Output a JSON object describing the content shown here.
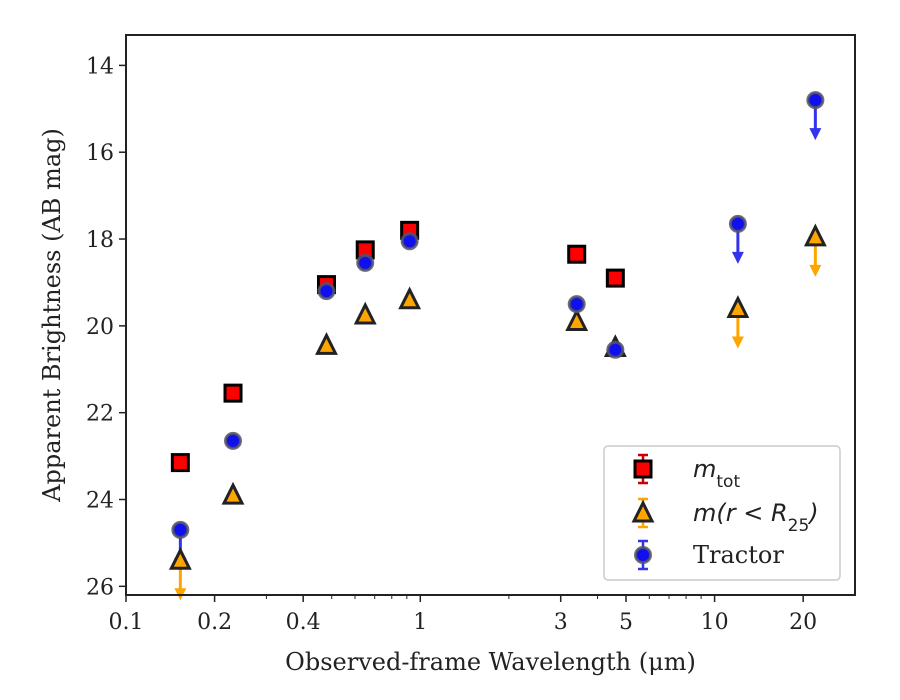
{
  "chart_data": {
    "type": "scatter",
    "xlabel": "Observed-frame Wavelength (μm)",
    "ylabel": "Apparent Brightness (AB mag)",
    "xscale": "log",
    "xlim": [
      0.1,
      30
    ],
    "ylim": [
      26.2,
      13.3
    ],
    "y_inverted": true,
    "x_ticks": [
      {
        "value": 0.1,
        "label": "0.1"
      },
      {
        "value": 0.2,
        "label": "0.2"
      },
      {
        "value": 0.4,
        "label": "0.4"
      },
      {
        "value": 1,
        "label": "1"
      },
      {
        "value": 3,
        "label": "3"
      },
      {
        "value": 5,
        "label": "5"
      },
      {
        "value": 10,
        "label": "10"
      },
      {
        "value": 20,
        "label": "20"
      }
    ],
    "y_ticks": [
      {
        "value": 14,
        "label": "14"
      },
      {
        "value": 16,
        "label": "16"
      },
      {
        "value": 18,
        "label": "18"
      },
      {
        "value": 20,
        "label": "20"
      },
      {
        "value": 22,
        "label": "22"
      },
      {
        "value": 24,
        "label": "24"
      },
      {
        "value": 26,
        "label": "26"
      }
    ],
    "grid": false,
    "legend_position": "bottom-right",
    "series": [
      {
        "name": "m_tot",
        "legend_label": {
          "main": "m",
          "sub": "tot"
        },
        "marker": "square",
        "fill": "#ff0000",
        "edge": "#000000",
        "errcolor": "#cc0000",
        "points": [
          {
            "x": 0.153,
            "y": 23.15
          },
          {
            "x": 0.231,
            "y": 21.55
          },
          {
            "x": 0.48,
            "y": 19.05
          },
          {
            "x": 0.65,
            "y": 18.25
          },
          {
            "x": 0.92,
            "y": 17.8
          },
          {
            "x": 3.4,
            "y": 18.35
          },
          {
            "x": 4.6,
            "y": 18.9
          }
        ]
      },
      {
        "name": "m(r < R_25)",
        "legend_label": {
          "main": "m(r < R",
          "sub": "25",
          "tail": ")"
        },
        "marker": "triangle",
        "fill": "#ffa500",
        "edge": "#222222",
        "errcolor": "#ffa500",
        "points": [
          {
            "x": 0.153,
            "y": 25.4,
            "upper_limit": true
          },
          {
            "x": 0.231,
            "y": 23.9
          },
          {
            "x": 0.48,
            "y": 20.45
          },
          {
            "x": 0.65,
            "y": 19.75
          },
          {
            "x": 0.92,
            "y": 19.4
          },
          {
            "x": 3.4,
            "y": 19.9
          },
          {
            "x": 4.6,
            "y": 20.5
          },
          {
            "x": 12.0,
            "y": 19.6,
            "upper_limit": true
          },
          {
            "x": 22.0,
            "y": 17.95,
            "upper_limit": true
          }
        ]
      },
      {
        "name": "Tractor",
        "legend_label": {
          "main": "Tractor"
        },
        "marker": "circle",
        "fill": "#1010ee",
        "edge": "#555566",
        "errcolor": "#3333ee",
        "points": [
          {
            "x": 0.153,
            "y": 24.7,
            "upper_limit": true
          },
          {
            "x": 0.231,
            "y": 22.65
          },
          {
            "x": 0.48,
            "y": 19.2
          },
          {
            "x": 0.65,
            "y": 18.55
          },
          {
            "x": 0.92,
            "y": 18.05
          },
          {
            "x": 3.4,
            "y": 19.5
          },
          {
            "x": 4.6,
            "y": 20.55
          },
          {
            "x": 12.0,
            "y": 17.65,
            "upper_limit": true
          },
          {
            "x": 22.0,
            "y": 14.8,
            "upper_limit": true
          }
        ]
      }
    ]
  }
}
